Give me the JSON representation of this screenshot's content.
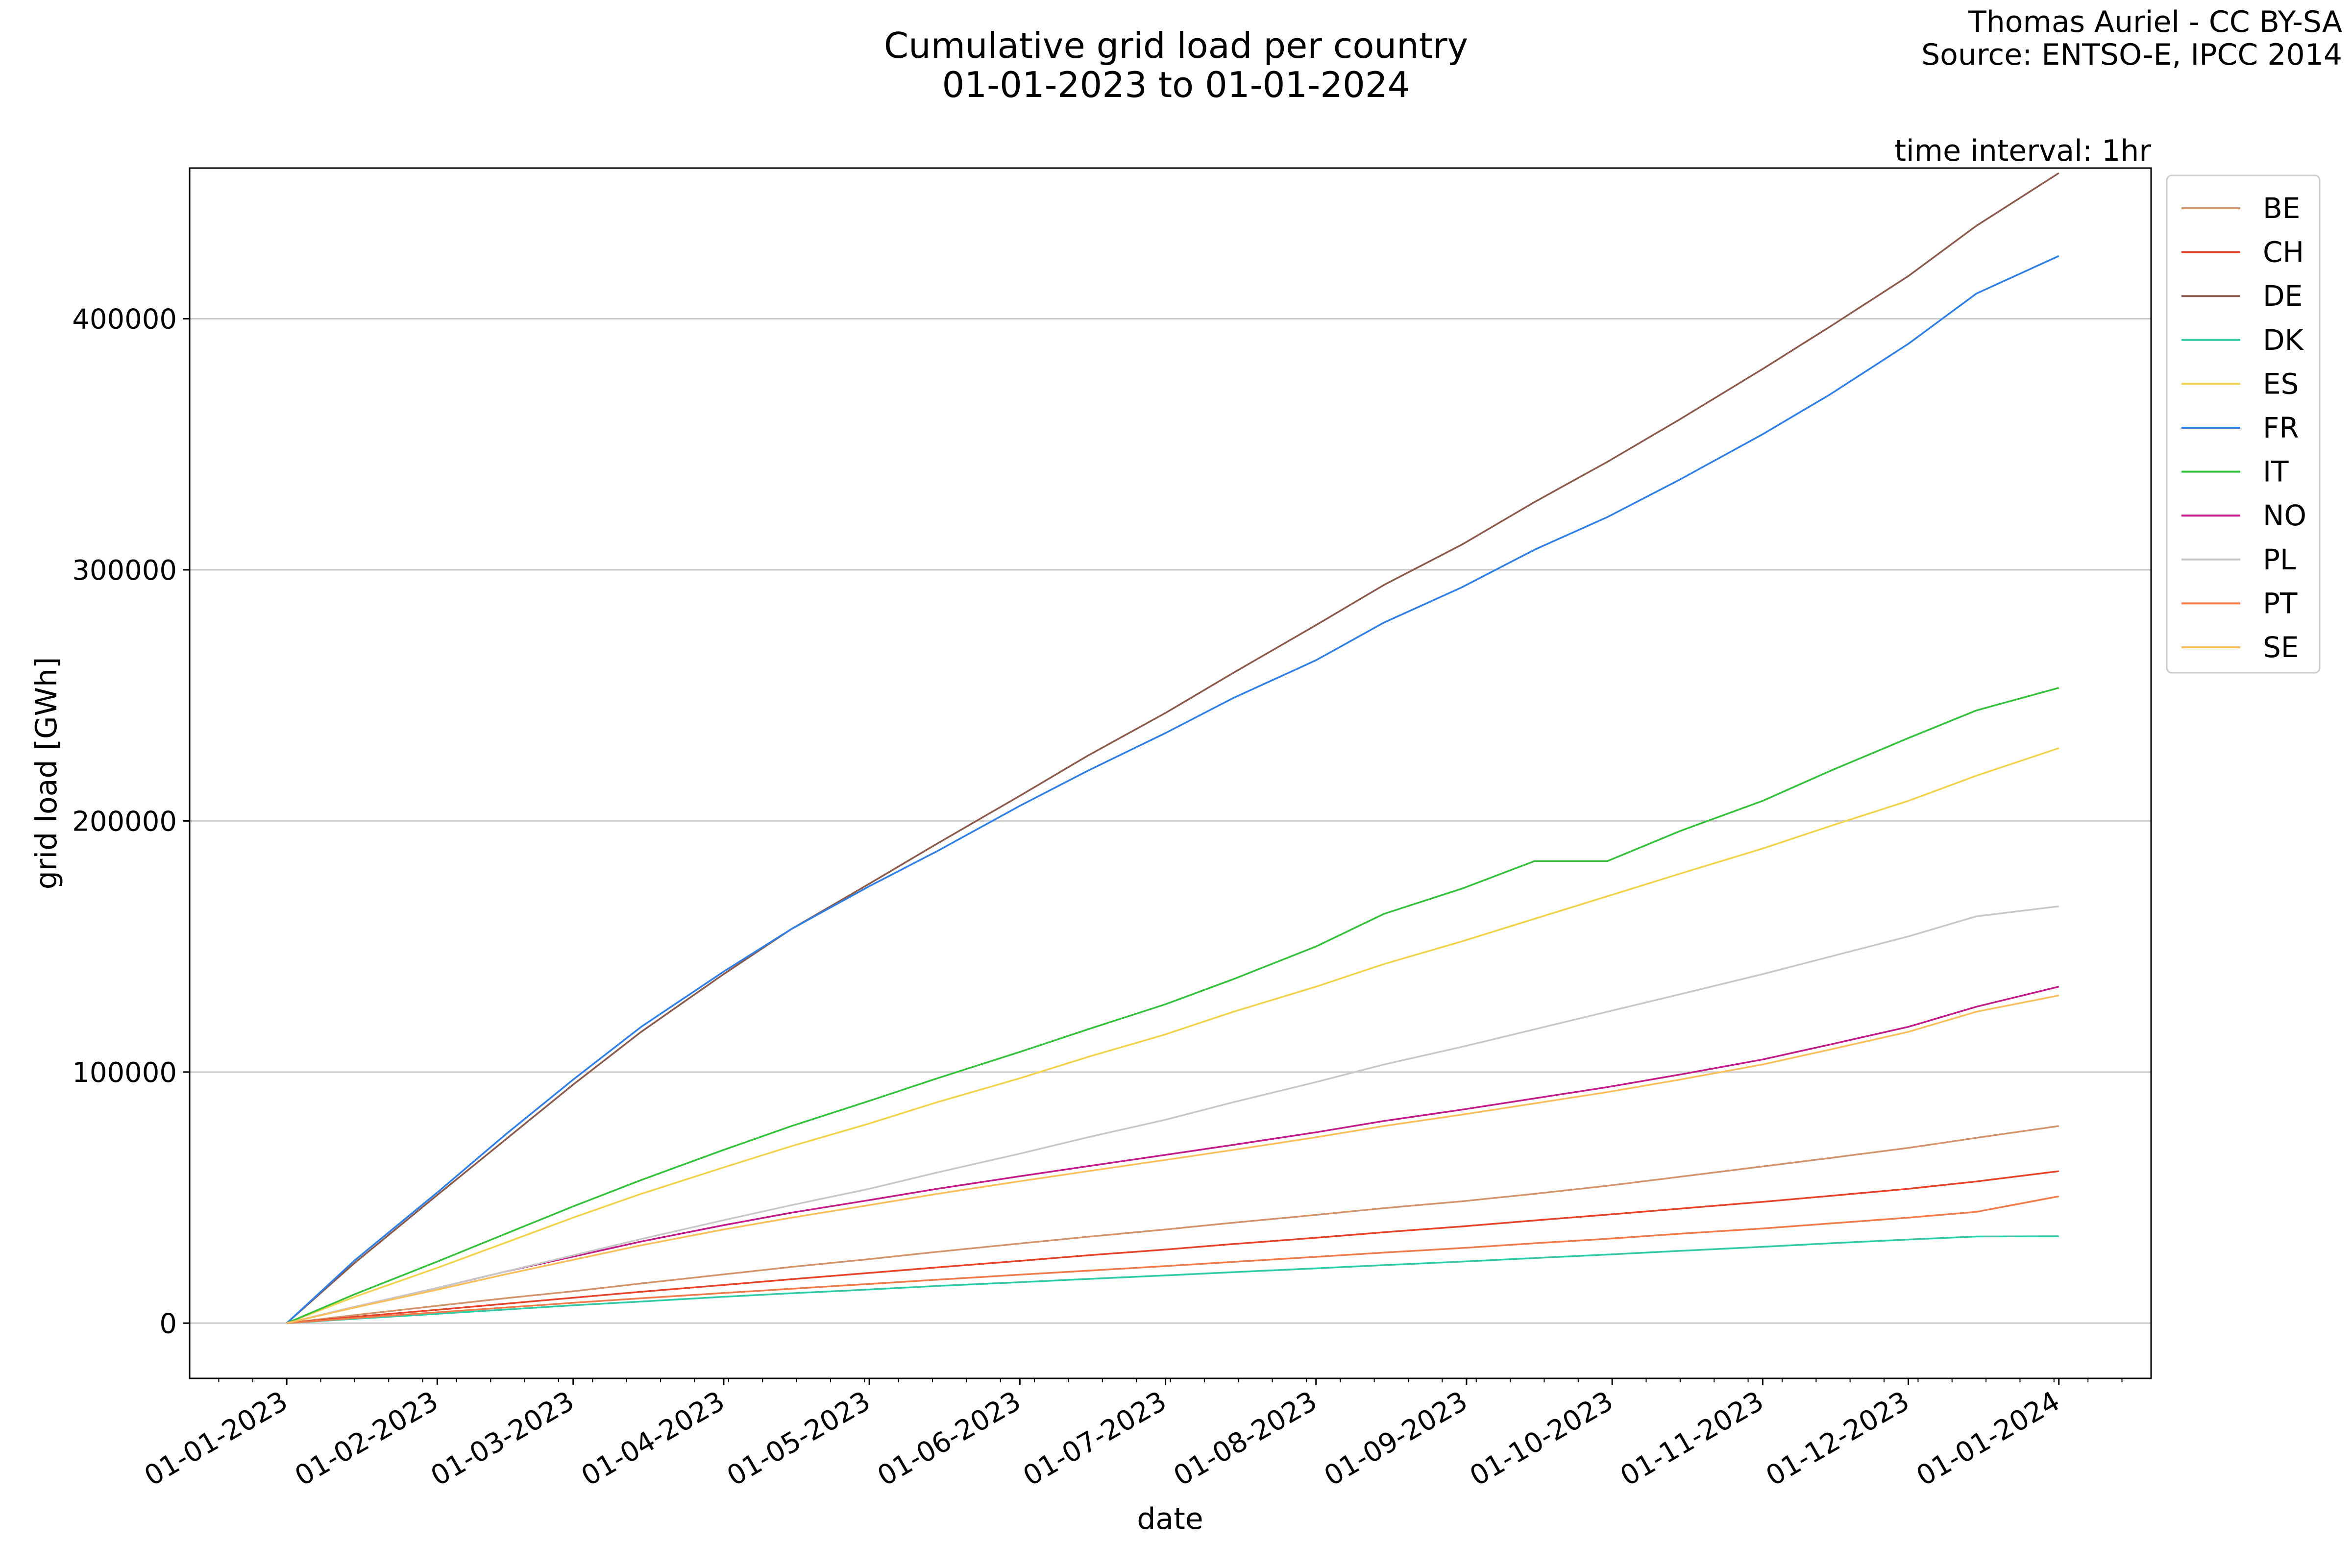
{
  "chart_data": {
    "type": "line",
    "title": "Cumulative grid load per country",
    "subtitle": "01-01-2023 to 01-01-2024",
    "credit_line1": "Thomas Auriel - CC BY-SA",
    "credit_line2": "Source: ENTSO-E, IPCC 2014",
    "annotation": "time interval: 1hr",
    "xlabel": "date",
    "ylabel": "grid load [GWh]",
    "xlim": [
      "2022-12-12",
      "2024-01-20"
    ],
    "ylim": [
      -22000,
      460000
    ],
    "grid": "horizontal",
    "legend_position": "right, outside plot",
    "x_ticks": [
      "01-01-2023",
      "01-02-2023",
      "01-03-2023",
      "01-04-2023",
      "01-05-2023",
      "01-06-2023",
      "01-07-2023",
      "01-08-2023",
      "01-09-2023",
      "01-10-2023",
      "01-11-2023",
      "01-12-2023",
      "01-01-2024"
    ],
    "x": [
      "2023-01-01",
      "2023-01-15",
      "2023-02-01",
      "2023-02-15",
      "2023-03-01",
      "2023-03-15",
      "2023-04-01",
      "2023-04-15",
      "2023-05-01",
      "2023-05-15",
      "2023-06-01",
      "2023-06-15",
      "2023-07-01",
      "2023-07-15",
      "2023-08-01",
      "2023-08-15",
      "2023-08-31",
      "2023-09-15",
      "2023-09-30",
      "2023-10-15",
      "2023-11-01",
      "2023-11-15",
      "2023-12-01",
      "2023-12-15",
      "2024-01-01"
    ],
    "y_ticks": [
      0,
      100000,
      200000,
      300000,
      400000
    ],
    "y_tick_labels": [
      "0",
      "100000",
      "200000",
      "300000",
      "400000"
    ],
    "series": [
      {
        "name": "BE",
        "color": "#d2946b",
        "values": [
          0,
          3200,
          6900,
          9900,
          12700,
          15800,
          19400,
          22400,
          25500,
          28400,
          31700,
          34400,
          37300,
          40000,
          43100,
          45800,
          48500,
          51500,
          54700,
          58300,
          62400,
          65800,
          69800,
          73800,
          78500
        ]
      },
      {
        "name": "CH",
        "color": "#e8412a",
        "values": [
          0,
          2500,
          5300,
          7700,
          10100,
          12500,
          15200,
          17500,
          20000,
          22200,
          24800,
          27000,
          29300,
          31500,
          34000,
          36200,
          38500,
          40900,
          43200,
          45600,
          48300,
          50700,
          53500,
          56400,
          60500
        ]
      },
      {
        "name": "DE",
        "color": "#8c5a4a",
        "values": [
          0,
          24000,
          51000,
          73000,
          95000,
          116000,
          139000,
          157000,
          175000,
          191000,
          210000,
          226000,
          243000,
          259000,
          278000,
          294000,
          310000,
          327000,
          343000,
          360000,
          380000,
          397000,
          417000,
          437000,
          458000
        ]
      },
      {
        "name": "DK",
        "color": "#2ecba6",
        "values": [
          0,
          1700,
          3700,
          5400,
          7100,
          8600,
          10500,
          11900,
          13400,
          14800,
          16300,
          17600,
          19000,
          20300,
          21800,
          23100,
          24500,
          25900,
          27300,
          28800,
          30400,
          31800,
          33300,
          34500,
          34600
        ]
      },
      {
        "name": "ES",
        "color": "#f2d34d",
        "values": [
          0,
          10500,
          22000,
          32000,
          42000,
          51500,
          62000,
          70500,
          79500,
          88000,
          97500,
          106000,
          115000,
          124000,
          134000,
          143000,
          152000,
          161000,
          170000,
          179000,
          189000,
          198000,
          208000,
          218000,
          229000
        ]
      },
      {
        "name": "FR",
        "color": "#2e7fe8",
        "values": [
          0,
          25000,
          52000,
          75000,
          97000,
          118000,
          140000,
          157000,
          174000,
          188000,
          206000,
          220000,
          235000,
          249000,
          264000,
          279000,
          293000,
          308000,
          321000,
          336000,
          354000,
          370000,
          390000,
          410000,
          425000
        ]
      },
      {
        "name": "IT",
        "color": "#34c23c",
        "values": [
          0,
          11500,
          24500,
          35500,
          46500,
          57000,
          69000,
          78500,
          88500,
          97500,
          108000,
          117000,
          127000,
          137000,
          150000,
          163000,
          173000,
          184000,
          184000,
          196000,
          208000,
          220000,
          233000,
          244000,
          253000
        ]
      },
      {
        "name": "NO",
        "color": "#c21a88",
        "values": [
          0,
          6500,
          14000,
          20500,
          26500,
          32500,
          39000,
          44000,
          49000,
          53500,
          58500,
          62500,
          67000,
          71000,
          76000,
          80500,
          85000,
          89500,
          94000,
          99000,
          105000,
          111000,
          118000,
          126000,
          134000
        ]
      },
      {
        "name": "PL",
        "color": "#c8c8c8",
        "values": [
          0,
          6500,
          14000,
          20500,
          27000,
          33500,
          41000,
          47000,
          53500,
          60000,
          67500,
          74000,
          81000,
          88000,
          96000,
          103000,
          110000,
          117000,
          124000,
          131000,
          139000,
          146000,
          154000,
          162000,
          166000
        ]
      },
      {
        "name": "PT",
        "color": "#f07a4a",
        "values": [
          0,
          2000,
          4300,
          6200,
          8100,
          9900,
          12000,
          13700,
          15600,
          17300,
          19300,
          20900,
          22700,
          24400,
          26400,
          28100,
          29900,
          31800,
          33600,
          35600,
          37700,
          39700,
          42000,
          44300,
          50500
        ]
      },
      {
        "name": "SE",
        "color": "#f8bf5a",
        "values": [
          0,
          6200,
          13300,
          19400,
          25200,
          31000,
          37300,
          42000,
          47000,
          51500,
          56500,
          60500,
          65000,
          69000,
          74000,
          78500,
          83000,
          87500,
          92000,
          97000,
          103000,
          109000,
          116000,
          124000,
          130500
        ]
      }
    ]
  }
}
